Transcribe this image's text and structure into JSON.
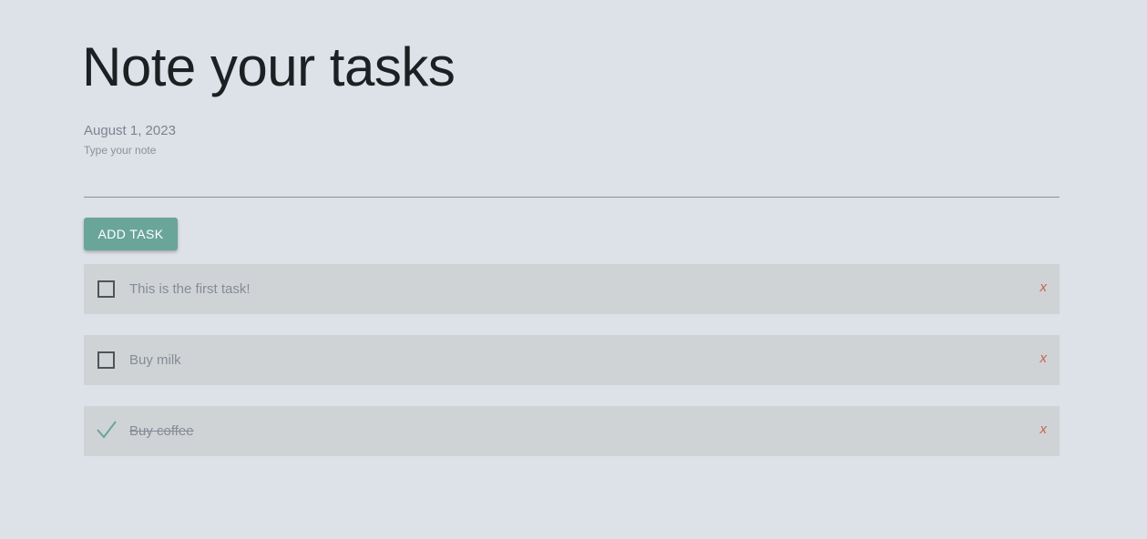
{
  "header": {
    "title": "Note your tasks",
    "date": "August 1, 2023"
  },
  "note": {
    "label": "Type your note",
    "value": ""
  },
  "add_button": {
    "label": "ADD TASK"
  },
  "tasks": [
    {
      "text": "This is the first task!",
      "done": false,
      "delete_label": "x"
    },
    {
      "text": "Buy milk",
      "done": false,
      "delete_label": "x"
    },
    {
      "text": "Buy coffee",
      "done": true,
      "delete_label": "x"
    }
  ],
  "colors": {
    "background": "#dde1e8",
    "accent": "#6aa59a",
    "task_background": "#cfd3d6",
    "delete": "#c8614f"
  },
  "icons": {
    "unchecked": "checkbox-empty-icon",
    "checked": "checkmark-icon"
  }
}
